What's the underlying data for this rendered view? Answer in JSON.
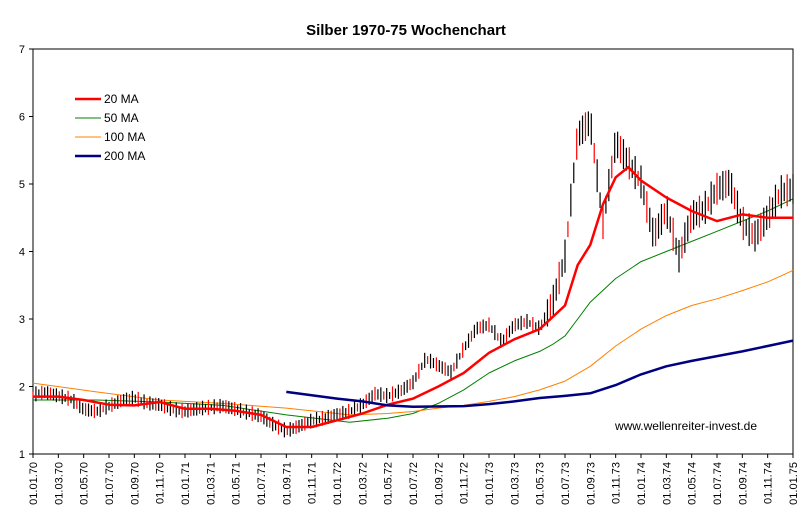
{
  "chart_data": {
    "type": "line",
    "title": "Silber 1970-75 Wochenchart",
    "ylim": [
      1,
      7
    ],
    "yticks": [
      "1",
      "2",
      "3",
      "4",
      "5",
      "6",
      "7"
    ],
    "xlim": [
      0,
      60
    ],
    "x_tick_labels": [
      "01.01.70",
      "01.03.70",
      "01.05.70",
      "01.07.70",
      "01.09.70",
      "01.11.70",
      "01.01.71",
      "01.03.71",
      "01.05.71",
      "01.07.71",
      "01.09.71",
      "01.11.71",
      "01.01.72",
      "01.03.72",
      "01.05.72",
      "01.07.72",
      "01.09.72",
      "01.11.72",
      "01.01.73",
      "01.03.73",
      "01.05.73",
      "01.07.73",
      "01.09.73",
      "01.11.73",
      "01.01.74",
      "01.03.74",
      "01.05.74",
      "01.07.74",
      "01.09.74",
      "01.11.74",
      "01.01.75"
    ],
    "grid": false,
    "legend_position": "top-left",
    "annotation": "www.wellenreiter-invest.de",
    "price_close": {
      "x": [
        0,
        1,
        2,
        3,
        4,
        5,
        6,
        7,
        8,
        9,
        10,
        11,
        12,
        13,
        14,
        15,
        16,
        17,
        18,
        19,
        20,
        21,
        22,
        23,
        24,
        25,
        26,
        27,
        28,
        29,
        30,
        31,
        32,
        33,
        34,
        35,
        36,
        37,
        38,
        39,
        40,
        41,
        42,
        43,
        44,
        45,
        46,
        47,
        48,
        49,
        50,
        51,
        52,
        53,
        54,
        55,
        56,
        57,
        58,
        59,
        60
      ],
      "y": [
        1.87,
        1.9,
        1.85,
        1.8,
        1.65,
        1.62,
        1.7,
        1.78,
        1.82,
        1.74,
        1.72,
        1.65,
        1.62,
        1.66,
        1.68,
        1.7,
        1.65,
        1.6,
        1.55,
        1.42,
        1.33,
        1.4,
        1.48,
        1.52,
        1.57,
        1.62,
        1.72,
        1.88,
        1.85,
        1.92,
        2.05,
        2.4,
        2.3,
        2.2,
        2.55,
        2.85,
        2.9,
        2.65,
        2.9,
        2.95,
        2.85,
        3.2,
        3.9,
        5.7,
        5.9,
        4.4,
        5.6,
        5.3,
        5.0,
        4.2,
        4.6,
        3.9,
        4.5,
        4.6,
        4.9,
        5.0,
        4.4,
        4.2,
        4.5,
        4.85,
        4.9
      ],
      "spread": 0.1
    },
    "series": [
      {
        "name": "20 MA",
        "color": "#ff0000",
        "x": [
          0,
          2,
          4,
          6,
          8,
          10,
          12,
          14,
          16,
          18,
          20,
          22,
          24,
          26,
          28,
          30,
          32,
          34,
          36,
          38,
          40,
          42,
          43,
          44,
          45,
          46,
          47,
          48,
          50,
          52,
          54,
          56,
          58,
          60
        ],
        "y": [
          1.85,
          1.85,
          1.8,
          1.73,
          1.72,
          1.77,
          1.67,
          1.67,
          1.64,
          1.58,
          1.4,
          1.4,
          1.5,
          1.6,
          1.73,
          1.82,
          2.0,
          2.2,
          2.5,
          2.7,
          2.85,
          3.2,
          3.8,
          4.1,
          4.7,
          5.1,
          5.25,
          5.05,
          4.8,
          4.6,
          4.45,
          4.55,
          4.5,
          4.5
        ]
      },
      {
        "name": "50 MA",
        "color": "#008000",
        "x": [
          0,
          5,
          10,
          15,
          20,
          25,
          28,
          30,
          32,
          34,
          36,
          38,
          40,
          41,
          42,
          43,
          44,
          46,
          48,
          50,
          52,
          54,
          56,
          58,
          60
        ],
        "y": [
          1.8,
          1.8,
          1.77,
          1.72,
          1.58,
          1.47,
          1.53,
          1.6,
          1.75,
          1.95,
          2.2,
          2.38,
          2.52,
          2.62,
          2.75,
          3.0,
          3.25,
          3.6,
          3.85,
          4.0,
          4.15,
          4.3,
          4.45,
          4.6,
          4.78
        ]
      },
      {
        "name": "100 MA",
        "color": "#ff8000",
        "x": [
          0,
          5,
          10,
          15,
          20,
          25,
          28,
          30,
          32,
          34,
          36,
          38,
          40,
          42,
          44,
          46,
          48,
          50,
          52,
          54,
          56,
          58,
          60
        ],
        "y": [
          2.05,
          1.92,
          1.8,
          1.75,
          1.68,
          1.58,
          1.6,
          1.63,
          1.68,
          1.72,
          1.78,
          1.85,
          1.95,
          2.08,
          2.3,
          2.6,
          2.85,
          3.05,
          3.2,
          3.3,
          3.42,
          3.55,
          3.72
        ]
      },
      {
        "name": "200 MA",
        "color": "#000080",
        "x": [
          20,
          24,
          26,
          28,
          30,
          34,
          36,
          38,
          40,
          42,
          44,
          46,
          48,
          50,
          52,
          54,
          56,
          58,
          60
        ],
        "y": [
          1.92,
          1.82,
          1.78,
          1.72,
          1.7,
          1.71,
          1.74,
          1.78,
          1.83,
          1.86,
          1.9,
          2.02,
          2.18,
          2.3,
          2.38,
          2.45,
          2.52,
          2.6,
          2.68
        ]
      }
    ]
  }
}
